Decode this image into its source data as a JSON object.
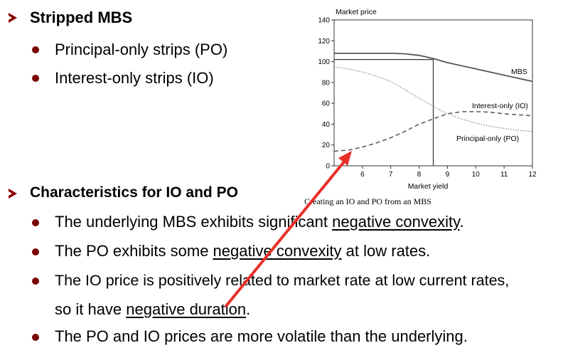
{
  "section1": {
    "title": "Stripped MBS",
    "items": [
      "Principal-only strips (PO)",
      "Interest-only strips (IO)"
    ]
  },
  "section2": {
    "title": "Characteristics for IO and PO",
    "b1": {
      "pre": "The underlying MBS exhibits significant ",
      "u": "negative convexity",
      "post": "."
    },
    "b2": {
      "pre": "The PO exhibits some ",
      "u": "negative convexity",
      "post": " at low rates."
    },
    "b3": {
      "line1": "The IO price is positively related to market rate at low current rates,",
      "pre": "so it have ",
      "u": "negative duration",
      "post": "."
    },
    "b4": "The PO and IO prices are more volatile than the underlying."
  },
  "chart_caption": "Creating an IO and PO from an MBS",
  "colors": {
    "bullet": "#7a0000",
    "arrow": "#e8302a",
    "mbs": "#555555",
    "io": "#555555",
    "po": "#888888"
  },
  "chart_data": {
    "type": "line",
    "ylabel": "Market price",
    "xlabel": "Market yield",
    "xlim": [
      5,
      12
    ],
    "ylim": [
      0,
      140
    ],
    "xticks": [
      6,
      7,
      8,
      9,
      10,
      11,
      12
    ],
    "yticks": [
      0,
      20,
      40,
      60,
      80,
      100,
      120,
      140
    ],
    "reference": {
      "x": 8.5,
      "y": 102
    },
    "series": [
      {
        "name": "MBS",
        "style": "solid",
        "x": [
          5,
          6,
          7,
          7.5,
          8,
          8.5,
          9,
          10,
          11,
          12
        ],
        "y": [
          108,
          108,
          108,
          107.5,
          106,
          103,
          99,
          93,
          87,
          81
        ]
      },
      {
        "name": "Interest-only (IO)",
        "style": "dashed",
        "x": [
          5,
          5.5,
          6,
          6.5,
          7,
          7.5,
          8,
          8.5,
          9,
          9.5,
          10,
          10.5,
          11,
          11.5,
          12
        ],
        "y": [
          14,
          15,
          18,
          22,
          27,
          33,
          40,
          45,
          50,
          52,
          52,
          51.5,
          50,
          49,
          48
        ]
      },
      {
        "name": "Principal-only (PO)",
        "style": "dotted",
        "x": [
          5,
          5.5,
          6,
          6.5,
          7,
          7.5,
          8,
          8.5,
          9,
          9.5,
          10,
          10.5,
          11,
          11.5,
          12
        ],
        "y": [
          95,
          93,
          90,
          86,
          81,
          73,
          65,
          57,
          50,
          45,
          41,
          38,
          36,
          34,
          33
        ]
      }
    ]
  }
}
